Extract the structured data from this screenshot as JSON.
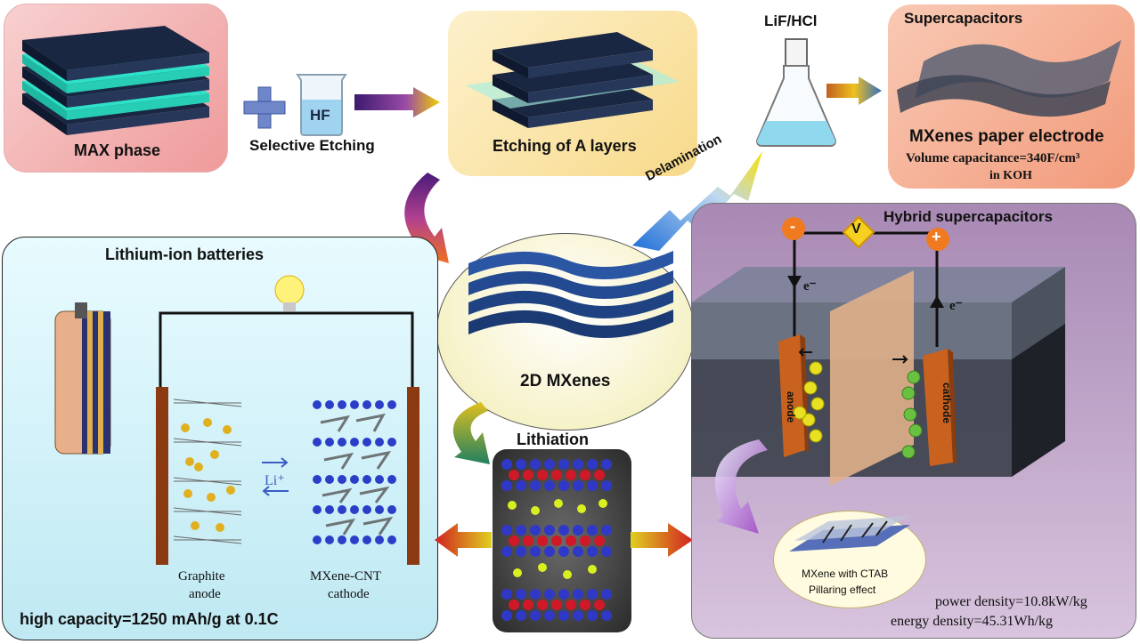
{
  "top": {
    "max_phase": "MAX phase",
    "hf": "HF",
    "selective_etching": "Selective Etching",
    "etching_a_layers": "Etching of A layers",
    "lif_hcl": "LiF/HCl",
    "delamination": "Delamination"
  },
  "supercap": {
    "title": "Supercapacitors",
    "electrode": "MXenes paper electrode",
    "volume": "Volume capacitance=340F/cm³",
    "medium": "in KOH"
  },
  "center": {
    "mxenes_2d": "2D MXenes",
    "lithiation": "Lithiation"
  },
  "lib": {
    "title": "Lithium-ion batteries",
    "li_ion": "Li⁺",
    "anode_line1": "Graphite",
    "anode_line2": "anode",
    "cathode_line1": "MXene-CNT",
    "cathode_line2": "cathode",
    "capacity": "high capacity=1250 mAh/g at 0.1C"
  },
  "hybrid": {
    "title": "Hybrid supercapacitors",
    "minus": "-",
    "plus": "+",
    "volt": "V",
    "electron_left": "e⁻",
    "electron_right": "e⁻",
    "anode": "anode",
    "cathode": "cathode",
    "ctab_line1": "MXene with CTAB",
    "ctab_line2": "Pillaring effect",
    "power": "power density=10.8kW/kg",
    "energy": "energy density=45.31Wh/kg"
  },
  "colors": {
    "max_bg": "#f2a7a7",
    "etch_bg": "#fbe3a3",
    "super_bg": "#f4a98a",
    "lib_bg": "#c8eef5",
    "hybrid_bg": "#c7a8cf",
    "slab": "#1a2742",
    "teal": "#2fe0c8"
  }
}
